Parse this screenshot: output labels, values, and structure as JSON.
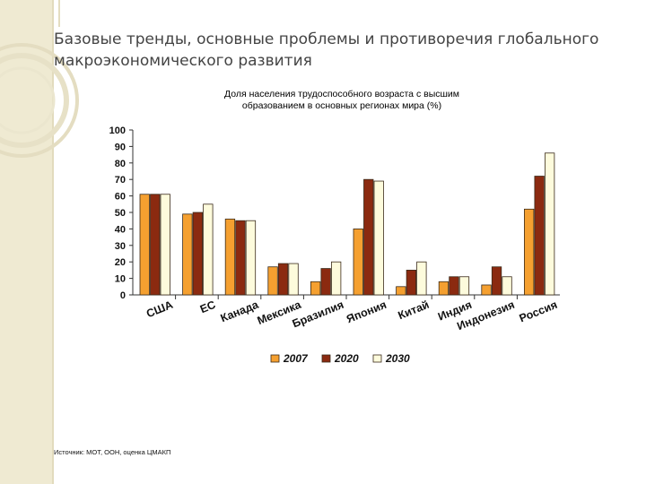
{
  "slide": {
    "title_line1": "Базовые тренды, основные проблемы и противоречия глобального",
    "title_line2": "макроэкономического развития",
    "source": "Источник: МОТ, ООН, оценка ЦМАКП"
  },
  "colors": {
    "s2007": "#f5a030",
    "s2020": "#8b2a10",
    "s2030": "#fdfbdc",
    "bar_stroke": "#3a2a1a",
    "axis": "#333333",
    "slide_ornament": "#e7e1c7"
  },
  "chart_data": {
    "type": "bar",
    "title_line1": "Доля населения трудоспособного возраста с высшим",
    "title_line2": "образованием в основных регионах мира (%)",
    "categories": [
      "США",
      "ЕС",
      "Канада",
      "Мексика",
      "Бразилия",
      "Япония",
      "Китай",
      "Индия",
      "Индонезия",
      "Россия"
    ],
    "series": [
      {
        "name": "2007",
        "values": [
          61,
          49,
          46,
          17,
          8,
          40,
          5,
          8,
          6,
          52
        ]
      },
      {
        "name": "2020",
        "values": [
          61,
          50,
          45,
          19,
          16,
          70,
          15,
          11,
          17,
          72
        ]
      },
      {
        "name": "2030",
        "values": [
          61,
          55,
          45,
          19,
          20,
          69,
          20,
          11,
          11,
          86
        ]
      }
    ],
    "ylim": [
      0,
      100
    ],
    "yticks": [
      0,
      10,
      20,
      30,
      40,
      50,
      60,
      70,
      80,
      90,
      100
    ],
    "grid": false,
    "legend": "bottom"
  }
}
